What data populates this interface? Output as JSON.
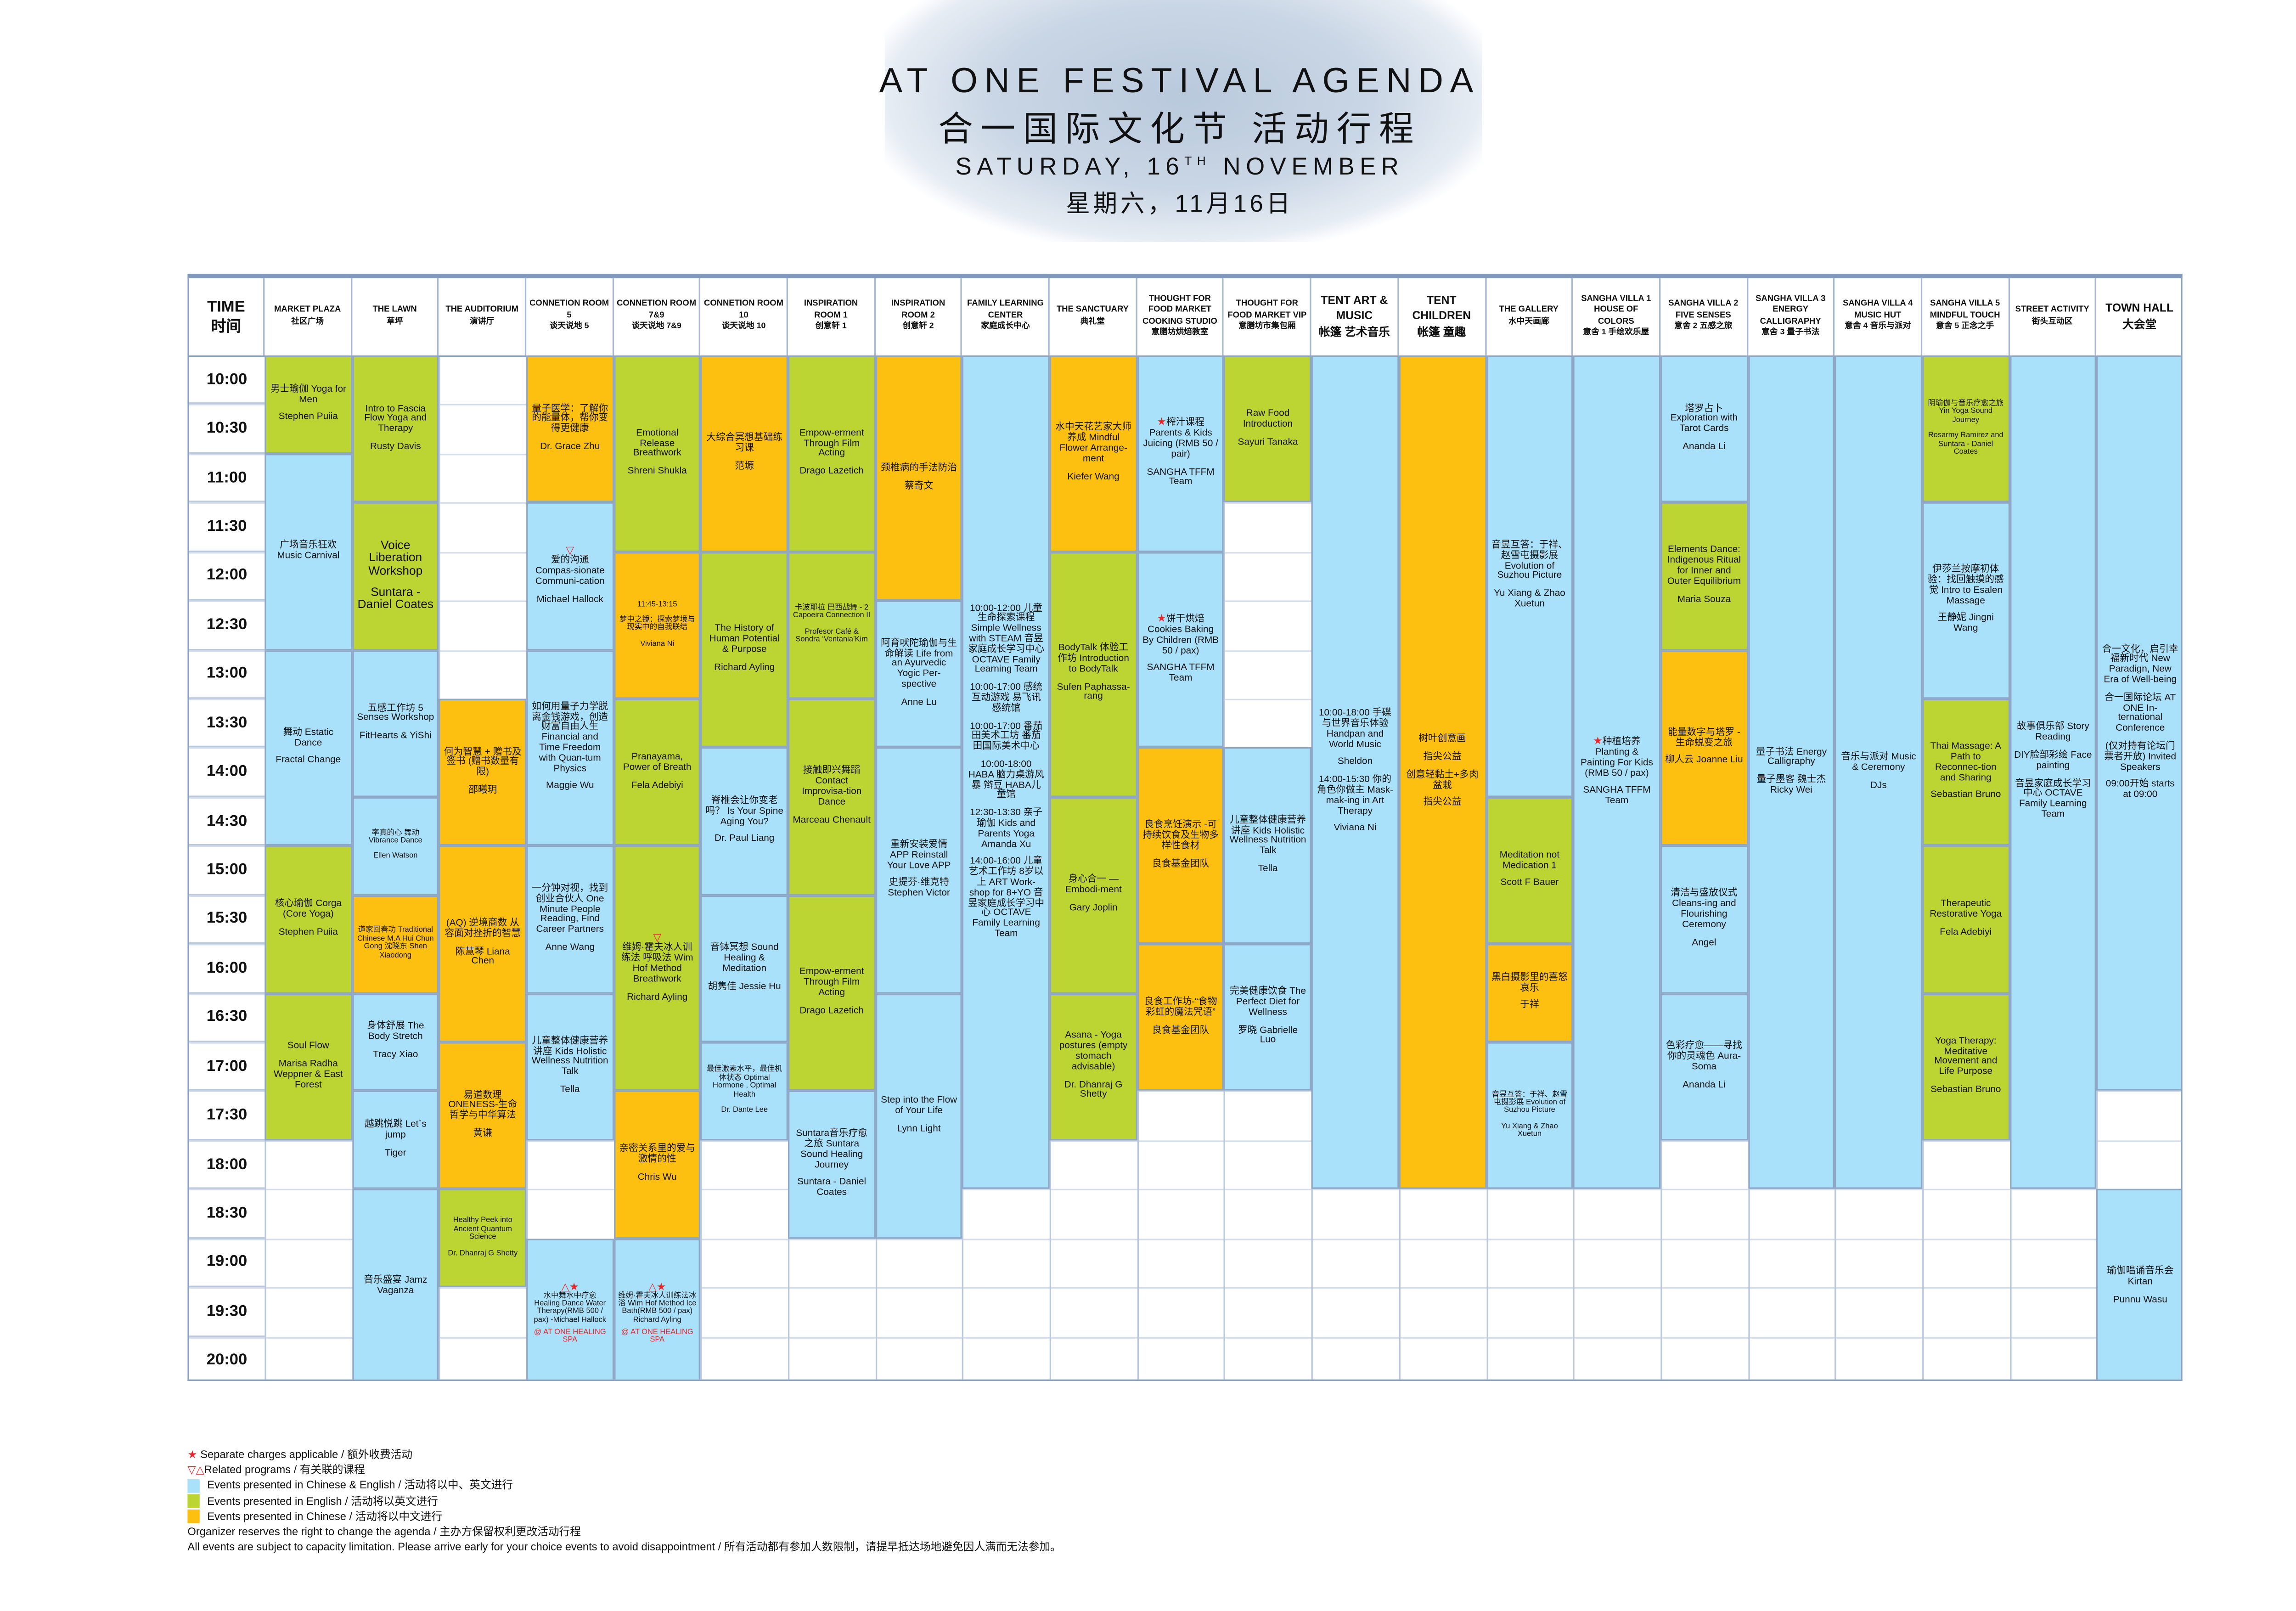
{
  "header": {
    "title_en": "AT ONE FESTIVAL AGENDA",
    "title_zh": "合一国际文化节 活动行程",
    "date_en_prefix": "SATURDAY, 16",
    "date_en_sup": "TH",
    "date_en_suffix": " NOVEMBER",
    "date_zh": "星期六，11月16日"
  },
  "time_header": {
    "en": "TIME",
    "zh": "时间"
  },
  "colors": {
    "bilingual": "#a9e0fa",
    "english": "#bcd532",
    "chinese": "#fec010",
    "marker": "#e8262b",
    "grid": "#8aa2c2"
  },
  "venues": [
    {
      "en": "MARKET PLAZA",
      "zh": "社区广场"
    },
    {
      "en": "THE LAWN",
      "zh": "草坪"
    },
    {
      "en": "THE AUDITORIUM",
      "zh": "演讲厅"
    },
    {
      "en": "CONNETION ROOM 5",
      "zh": "谈天说地 5"
    },
    {
      "en": "CONNETION ROOM 7&9",
      "zh": "谈天说地 7&9"
    },
    {
      "en": "CONNETION ROOM 10",
      "zh": "谈天说地 10"
    },
    {
      "en": "INSPIRATION ROOM 1",
      "zh": "创意轩 1"
    },
    {
      "en": "INSPIRATION ROOM 2",
      "zh": "创意轩 2"
    },
    {
      "en": "FAMILY LEARNING CENTER",
      "zh": "家庭成长中心"
    },
    {
      "en": "THE SANCTUARY",
      "zh": "典礼堂"
    },
    {
      "en": "THOUGHT FOR FOOD MARKET COOKING STUDIO",
      "zh": "意膳坊烘焙教室"
    },
    {
      "en": "THOUGHT FOR FOOD MARKET VIP",
      "zh": "意膳坊市集包厢"
    },
    {
      "en": "TENT ART & MUSIC",
      "zh": "帐篷 艺术音乐",
      "big": true
    },
    {
      "en": "TENT CHILDREN",
      "zh": "帐篷 童趣",
      "big": true
    },
    {
      "en": "THE GALLERY",
      "zh": "水中天画廊"
    },
    {
      "en": "SANGHA VILLA 1 HOUSE OF COLORS",
      "zh": "意舍 1 手绘欢乐屋"
    },
    {
      "en": "SANGHA VILLA 2 FIVE SENSES",
      "zh": "意舍 2 五感之旅"
    },
    {
      "en": "SANGHA VILLA 3 ENERGY CALLIGRAPHY",
      "zh": "意舍 3 量子书法"
    },
    {
      "en": "SANGHA VILLA 4 MUSIC HUT",
      "zh": "意舍 4 音乐与派对"
    },
    {
      "en": "SANGHA VILLA 5 MINDFUL TOUCH",
      "zh": "意舍 5 正念之手"
    },
    {
      "en": "STREET ACTIVITY",
      "zh": "街头互动区"
    },
    {
      "en": "TOWN HALL",
      "zh": "大会堂",
      "big": true
    }
  ],
  "times": [
    "10:00",
    "10:30",
    "11:00",
    "11:30",
    "12:00",
    "12:30",
    "13:00",
    "13:30",
    "14:00",
    "14:30",
    "15:00",
    "15:30",
    "16:00",
    "16:30",
    "17:00",
    "17:30",
    "18:00",
    "18:30",
    "19:00",
    "19:30",
    "20:00"
  ],
  "events": [
    {
      "venue": 0,
      "start": "10:00",
      "end": "11:00",
      "lang": "english",
      "paras": [
        "男士瑜伽 Yoga for Men",
        "Stephen Puiia"
      ]
    },
    {
      "venue": 0,
      "start": "11:00",
      "end": "13:00",
      "lang": "bilingual",
      "paras": [
        "广场音乐狂欢 Music Carnival"
      ]
    },
    {
      "venue": 0,
      "start": "13:00",
      "end": "15:00",
      "lang": "bilingual",
      "paras": [
        "舞动 Estatic Dance",
        "Fractal Change"
      ]
    },
    {
      "venue": 0,
      "start": "15:00",
      "end": "16:30",
      "lang": "english",
      "paras": [
        "核心瑜伽 Corga (Core Yoga)",
        "Stephen Puiia"
      ]
    },
    {
      "venue": 0,
      "start": "16:30",
      "end": "18:00",
      "lang": "english",
      "paras": [
        "Soul Flow",
        "Marisa Radha Weppner & East Forest"
      ]
    },
    {
      "venue": 1,
      "start": "10:00",
      "end": "11:30",
      "lang": "english",
      "paras": [
        "Intro to Fascia Flow Yoga and Therapy",
        "Rusty Davis"
      ]
    },
    {
      "venue": 1,
      "start": "11:30",
      "end": "13:00",
      "lang": "english",
      "large": true,
      "paras": [
        "Voice Liberation Workshop",
        "Suntara - Daniel Coates"
      ]
    },
    {
      "venue": 1,
      "start": "13:00",
      "end": "14:30",
      "lang": "bilingual",
      "paras": [
        "五感工作坊 5 Senses Workshop",
        "FitHearts & YiShi"
      ]
    },
    {
      "venue": 1,
      "start": "14:30",
      "end": "15:30",
      "lang": "bilingual",
      "small": true,
      "paras": [
        "率真的心 舞动 Vibrance Dance",
        "Ellen Watson"
      ]
    },
    {
      "venue": 1,
      "start": "15:30",
      "end": "16:30",
      "lang": "chinese",
      "small": true,
      "paras": [
        "道家回春功 Traditional Chinese M.A Hui Chun Gong 沈晓东 Shen Xiaodong"
      ]
    },
    {
      "venue": 1,
      "start": "16:30",
      "end": "17:30",
      "lang": "bilingual",
      "paras": [
        "身体舒展 The Body Stretch",
        "Tracy Xiao"
      ]
    },
    {
      "venue": 1,
      "start": "17:30",
      "end": "18:30",
      "lang": "bilingual",
      "paras": [
        "越跳悦跳 Let`s jump",
        "Tiger"
      ]
    },
    {
      "venue": 1,
      "start": "18:30",
      "end": "20:30",
      "lang": "bilingual",
      "paras": [
        "音乐盛宴 Jamz Vaganza"
      ]
    },
    {
      "venue": 2,
      "start": "13:30",
      "end": "15:00",
      "lang": "chinese",
      "paras": [
        "何为智慧 + 赠书及签书 (赠书数量有限)",
        "邵曦玥"
      ]
    },
    {
      "venue": 2,
      "start": "15:00",
      "end": "17:00",
      "lang": "chinese",
      "paras": [
        "(AQ) 逆境商数 从容面对挫折的智慧",
        "陈慧琴 Liana Chen"
      ]
    },
    {
      "venue": 2,
      "start": "17:00",
      "end": "18:30",
      "lang": "chinese",
      "paras": [
        "易道数理 ONENESS-生命哲学与中华算法",
        "黄谦"
      ]
    },
    {
      "venue": 2,
      "start": "18:30",
      "end": "19:30",
      "lang": "english",
      "small": true,
      "paras": [
        "Healthy Peek into Ancient Quantum Science",
        "Dr. Dhanraj G Shetty"
      ]
    },
    {
      "venue": 3,
      "start": "10:00",
      "end": "11:30",
      "lang": "chinese",
      "paras": [
        "量子医学：了解你的能量体，帮你变得更健康",
        "Dr. Grace Zhu"
      ]
    },
    {
      "venue": 3,
      "start": "11:30",
      "end": "13:00",
      "lang": "bilingual",
      "marker": "▽",
      "paras": [
        "爱的沟通 Compas-sionate Communi-cation",
        "Michael Hallock"
      ]
    },
    {
      "venue": 3,
      "start": "13:00",
      "end": "15:00",
      "lang": "bilingual",
      "paras": [
        "如何用量子力学脱离金钱游戏，创造财富自由人生 Financial and Time Freedom with Quan-tum Physics",
        "Maggie Wu"
      ]
    },
    {
      "venue": 3,
      "start": "15:00",
      "end": "16:30",
      "lang": "bilingual",
      "paras": [
        "一分钟对视，找到创业合伙人 One Minute People Reading, Find Career Partners",
        "Anne Wang"
      ]
    },
    {
      "venue": 3,
      "start": "16:30",
      "end": "18:00",
      "lang": "bilingual",
      "paras": [
        "儿童整体健康营养讲座 Kids Holistic Wellness Nutrition Talk",
        "Tella"
      ]
    },
    {
      "venue": 3,
      "start": "19:00",
      "end": "20:30",
      "lang": "bilingual",
      "small": true,
      "marker": "△★",
      "paras": [
        "水中舞水中疗愈 Healing Dance Water Therapy(RMB 500 / pax) -Michael Hallock"
      ],
      "note": "@ AT ONE HEALING SPA"
    },
    {
      "venue": 4,
      "start": "10:00",
      "end": "12:00",
      "lang": "english",
      "paras": [
        "Emotional Release Breathwork",
        "Shreni Shukla"
      ]
    },
    {
      "venue": 4,
      "start": "12:00",
      "end": "13:30",
      "lang": "chinese",
      "small": true,
      "paras": [
        "11:45-13:15",
        "梦中之镜：探索梦境与现实中的自我联结",
        "Viviana Ni"
      ]
    },
    {
      "venue": 4,
      "start": "13:30",
      "end": "15:00",
      "lang": "english",
      "paras": [
        "Pranayama, Power of Breath",
        "Fela Adebiyi"
      ]
    },
    {
      "venue": 4,
      "start": "15:00",
      "end": "17:30",
      "lang": "english",
      "marker": "▽",
      "paras": [
        "维姆·霍夫冰人训练法 呼吸法 Wim Hof Method Breathwork",
        "Richard Ayling"
      ]
    },
    {
      "venue": 4,
      "start": "17:30",
      "end": "19:00",
      "lang": "chinese",
      "paras": [
        "亲密关系里的爱与激情的性",
        "Chris Wu"
      ]
    },
    {
      "venue": 4,
      "start": "19:00",
      "end": "20:30",
      "lang": "bilingual",
      "small": true,
      "marker": "△★",
      "paras": [
        "维姆·霍夫冰人训练法冰浴 Wim Hof Method Ice Bath(RMB 500 / pax) Richard Ayling"
      ],
      "note": "@ AT ONE HEALING SPA"
    },
    {
      "venue": 5,
      "start": "10:00",
      "end": "12:00",
      "lang": "chinese",
      "paras": [
        "大综合冥想基础练习课",
        "范塬"
      ]
    },
    {
      "venue": 5,
      "start": "12:00",
      "end": "14:00",
      "lang": "english",
      "paras": [
        "The History of Human Potential & Purpose",
        "Richard Ayling"
      ]
    },
    {
      "venue": 5,
      "start": "14:00",
      "end": "15:30",
      "lang": "bilingual",
      "paras": [
        "脊椎会让你变老吗？ Is Your Spine Aging You?",
        "Dr. Paul Liang"
      ]
    },
    {
      "venue": 5,
      "start": "15:30",
      "end": "17:00",
      "lang": "bilingual",
      "paras": [
        "音钵冥想 Sound Healing & Meditation",
        "胡隽佳 Jessie Hu"
      ]
    },
    {
      "venue": 5,
      "start": "17:00",
      "end": "18:00",
      "lang": "bilingual",
      "small": true,
      "paras": [
        "最佳激素水平，最佳机体状态 Optimal Hormone , Optimal Health",
        "Dr. Dante Lee"
      ]
    },
    {
      "venue": 6,
      "start": "10:00",
      "end": "12:00",
      "lang": "english",
      "paras": [
        "Empow-erment Through Film Acting",
        "Drago Lazetich"
      ]
    },
    {
      "venue": 6,
      "start": "12:00",
      "end": "13:30",
      "lang": "english",
      "small": true,
      "paras": [
        "卡波耶拉 巴西战舞 - 2 Capoeira Connection II",
        "Profesor Café & Sondra ‘Ventania’Kim"
      ]
    },
    {
      "venue": 6,
      "start": "13:30",
      "end": "15:30",
      "lang": "english",
      "paras": [
        "接触即兴舞蹈 Contact Improvisa-tion Dance",
        "Marceau Chenault"
      ]
    },
    {
      "venue": 6,
      "start": "15:30",
      "end": "17:30",
      "lang": "english",
      "paras": [
        "Empow-erment Through Film Acting",
        "Drago Lazetich"
      ]
    },
    {
      "venue": 6,
      "start": "17:30",
      "end": "19:00",
      "lang": "bilingual",
      "paras": [
        "Suntara音乐疗愈之旅 Suntara Sound Healing Journey",
        "Suntara - Daniel Coates"
      ]
    },
    {
      "venue": 7,
      "start": "10:00",
      "end": "12:30",
      "lang": "chinese",
      "paras": [
        "颈椎病的手法防治",
        "蔡奇文"
      ]
    },
    {
      "venue": 7,
      "start": "12:30",
      "end": "14:00",
      "lang": "bilingual",
      "paras": [
        "阿育吠陀瑜伽与生命解读 Life from an Ayurvedic Yogic Per-spective",
        "Anne Lu"
      ]
    },
    {
      "venue": 7,
      "start": "14:00",
      "end": "16:30",
      "lang": "bilingual",
      "paras": [
        "重新安装爱情 APP Reinstall Your Love APP",
        "史提芬·维克特 Stephen Victor"
      ]
    },
    {
      "venue": 7,
      "start": "16:30",
      "end": "19:00",
      "lang": "bilingual",
      "paras": [
        "Step into the Flow of Your Life",
        "Lynn Light"
      ]
    },
    {
      "venue": 8,
      "start": "10:00",
      "end": "18:30",
      "lang": "bilingual",
      "paras": [
        "10:00-12:00 儿童生命探索课程 Simple Wellness with STEAM 音昱家庭成长学习中心 OCTAVE Family Learning Team",
        "10:00-17:00 感统互动游戏 易飞讯感统馆",
        "10:00-17:00 番茄田美术工坊 番茄田国际美术中心",
        "10:00-18:00 HABA 脑力桌游风暴 辫豆 HABA儿童馆",
        "12:30-13:30 亲子瑜伽 Kids and Parents Yoga Amanda Xu",
        "14:00-16:00 儿童艺术工作坊 8岁以上 ART Work-shop for 8+YO 音昱家庭成长学习中心 OCTAVE Family Learning Team"
      ]
    },
    {
      "venue": 9,
      "start": "10:00",
      "end": "12:00",
      "lang": "chinese",
      "paras": [
        "水中天花艺家大师养成 Mindful Flower Arrange-ment",
        "Kiefer Wang"
      ]
    },
    {
      "venue": 9,
      "start": "12:00",
      "end": "14:30",
      "lang": "english",
      "paras": [
        "BodyTalk 体验工作坊 Introduction to BodyTalk",
        "Sufen Paphassa-rang"
      ]
    },
    {
      "venue": 9,
      "start": "14:30",
      "end": "16:30",
      "lang": "english",
      "paras": [
        "身心合一 — Embodi-ment",
        "Gary Joplin"
      ]
    },
    {
      "venue": 9,
      "start": "16:30",
      "end": "18:00",
      "lang": "english",
      "paras": [
        "Asana - Yoga postures (empty stomach advisable)",
        "Dr. Dhanraj G Shetty"
      ]
    },
    {
      "venue": 10,
      "start": "10:00",
      "end": "12:00",
      "lang": "bilingual",
      "marker": "★",
      "inline": true,
      "paras": [
        "榨汁课程 Parents & Kids Juicing (RMB 50 / pair)",
        "SANGHA TFFM Team"
      ]
    },
    {
      "venue": 10,
      "start": "12:00",
      "end": "14:00",
      "lang": "bilingual",
      "marker": "★",
      "inline": true,
      "paras": [
        "饼干烘焙 Cookies Baking By Children (RMB 50 / pax)",
        "SANGHA TFFM Team"
      ]
    },
    {
      "venue": 10,
      "start": "14:00",
      "end": "16:00",
      "lang": "chinese",
      "paras": [
        "良食烹饪演示 -可持续饮食及生物多样性食材",
        "良食基金团队"
      ]
    },
    {
      "venue": 10,
      "start": "16:00",
      "end": "17:30",
      "lang": "chinese",
      "paras": [
        "良食工作坊-“食物彩虹的魔法咒语”",
        "良食基金团队"
      ]
    },
    {
      "venue": 11,
      "start": "10:00",
      "end": "11:30",
      "lang": "english",
      "paras": [
        "Raw Food Introduction",
        "Sayuri Tanaka"
      ]
    },
    {
      "venue": 11,
      "start": "14:00",
      "end": "16:00",
      "lang": "bilingual",
      "paras": [
        "儿童整体健康营养讲座 Kids Holistic Wellness Nutrition Talk",
        "Tella"
      ]
    },
    {
      "venue": 11,
      "start": "16:00",
      "end": "17:30",
      "lang": "bilingual",
      "paras": [
        "完美健康饮食 The Perfect Diet for Wellness",
        "罗晓 Gabrielle Luo"
      ]
    },
    {
      "venue": 12,
      "start": "10:00",
      "end": "18:30",
      "lang": "bilingual",
      "paras": [
        "10:00-18:00 手碟与世界音乐体验 Handpan and World Music",
        "Sheldon",
        "14:00-15:30 你的角色你做主 Mask-mak-ing in Art Therapy",
        "Viviana Ni"
      ]
    },
    {
      "venue": 13,
      "start": "10:00",
      "end": "18:30",
      "lang": "chinese",
      "paras": [
        "树叶创意画",
        "指尖公益",
        "创意轻黏土+多肉盆栽",
        "指尖公益"
      ]
    },
    {
      "venue": 14,
      "start": "10:00",
      "end": "14:30",
      "lang": "bilingual",
      "paras": [
        "音昱互答：于祥、赵雪屯摄影展 Evolution of Suzhou Picture",
        "Yu Xiang & Zhao Xuetun"
      ]
    },
    {
      "venue": 14,
      "start": "14:30",
      "end": "16:00",
      "lang": "english",
      "paras": [
        "Meditation not Medication 1",
        "Scott F Bauer"
      ]
    },
    {
      "venue": 14,
      "start": "16:00",
      "end": "17:00",
      "lang": "chinese",
      "paras": [
        "黑白摄影里的喜怒哀乐",
        "于祥"
      ]
    },
    {
      "venue": 14,
      "start": "17:00",
      "end": "18:30",
      "lang": "bilingual",
      "small": true,
      "paras": [
        "音昱互答：于祥、赵雪屯摄影展 Evolution of Suzhou Picture",
        "Yu Xiang & Zhao Xuetun"
      ]
    },
    {
      "venue": 15,
      "start": "10:00",
      "end": "18:30",
      "lang": "bilingual",
      "marker": "★",
      "inline": true,
      "paras": [
        "种植培养 Planting & Painting For Kids (RMB 50 / pax)",
        "SANGHA TFFM Team"
      ]
    },
    {
      "venue": 16,
      "start": "10:00",
      "end": "11:30",
      "lang": "bilingual",
      "paras": [
        "塔罗占卜 Exploration with Tarot Cards",
        "Ananda Li"
      ]
    },
    {
      "venue": 16,
      "start": "11:30",
      "end": "13:00",
      "lang": "english",
      "paras": [
        "Elements Dance: Indigenous Ritual for Inner and Outer Equilibrium",
        "Maria Souza"
      ]
    },
    {
      "venue": 16,
      "start": "13:00",
      "end": "15:00",
      "lang": "chinese",
      "paras": [
        "能量数字与塔罗 -生命蜕变之旅",
        "柳人云 Joanne Liu"
      ]
    },
    {
      "venue": 16,
      "start": "15:00",
      "end": "16:30",
      "lang": "bilingual",
      "paras": [
        "清洁与盛放仪式 Cleans-ing and Flourishing Ceremony",
        "Angel"
      ]
    },
    {
      "venue": 16,
      "start": "16:30",
      "end": "18:00",
      "lang": "bilingual",
      "paras": [
        "色彩疗愈——寻找你的灵魂色 Aura-Soma",
        "Ananda Li"
      ]
    },
    {
      "venue": 17,
      "start": "10:00",
      "end": "18:30",
      "lang": "bilingual",
      "paras": [
        "量子书法 Energy Calligraphy",
        "量子墨客 魏士杰 Ricky Wei"
      ]
    },
    {
      "venue": 18,
      "start": "10:00",
      "end": "18:30",
      "lang": "bilingual",
      "paras": [
        "音乐与派对 Music & Ceremony",
        "DJs"
      ]
    },
    {
      "venue": 19,
      "start": "10:00",
      "end": "11:30",
      "lang": "english",
      "small": true,
      "paras": [
        "阴瑜伽与音乐疗愈之旅 Yin Yoga Sound Journey",
        "Rosarmy Ramirez and Suntara - Daniel Coates"
      ]
    },
    {
      "venue": 19,
      "start": "11:30",
      "end": "13:30",
      "lang": "bilingual",
      "paras": [
        "伊莎兰按摩初体验：找回触摸的感觉 Intro to Esalen Massage",
        "王静妮 Jingni Wang"
      ]
    },
    {
      "venue": 19,
      "start": "13:30",
      "end": "15:00",
      "lang": "english",
      "paras": [
        "Thai Massage: A Path to Reconnec-tion and Sharing",
        "Sebastian Bruno"
      ]
    },
    {
      "venue": 19,
      "start": "15:00",
      "end": "16:30",
      "lang": "english",
      "paras": [
        "Therapeutic Restorative Yoga",
        "Fela Adebiyi"
      ]
    },
    {
      "venue": 19,
      "start": "16:30",
      "end": "18:00",
      "lang": "english",
      "paras": [
        "Yoga Therapy: Meditative Movement and Life Purpose",
        "Sebastian Bruno"
      ]
    },
    {
      "venue": 20,
      "start": "10:00",
      "end": "18:30",
      "lang": "bilingual",
      "paras": [
        "故事俱乐部 Story Reading",
        "DIY脸部彩绘 Face painting",
        "音昱家庭成长学习中心 OCTAVE Family Learning Team"
      ]
    },
    {
      "venue": 21,
      "start": "10:00",
      "end": "17:30",
      "lang": "bilingual",
      "paras": [
        "合一文化，启引幸福新时代 New Paradign, New Era of Well-being",
        "合一国际论坛 AT ONE In-ternational Conference",
        "(仅对持有论坛门票者开放) Invited Speakers",
        "09:00开始 starts at 09:00"
      ]
    },
    {
      "venue": 21,
      "start": "18:30",
      "end": "20:30",
      "lang": "bilingual",
      "paras": [
        "瑜伽唱诵音乐会 Kirtan",
        "Punnu Wasu"
      ]
    }
  ],
  "legend": {
    "star_symbol": "★",
    "star_text": "Separate charges applicable  /  额外收费活动",
    "triangle_symbol": "▽△",
    "triangle_text": "Related programs  /  有关联的课程",
    "bilingual_text": "Events presented in Chinese & English  /  活动将以中、英文进行",
    "english_text": "Events presented in English  /  活动将以英文进行",
    "chinese_text": "Events presented in Chinese  /  活动将以中文进行",
    "note1": "Organizer reserves the right to change the agenda  /  主办方保留权利更改活动行程",
    "note2": "All events are subject to capacity limitation.  Please arrive early for your choice events to avoid disappointment  /  所有活动都有参加人数限制，请提早抵达场地避免因人满而无法参加。"
  }
}
